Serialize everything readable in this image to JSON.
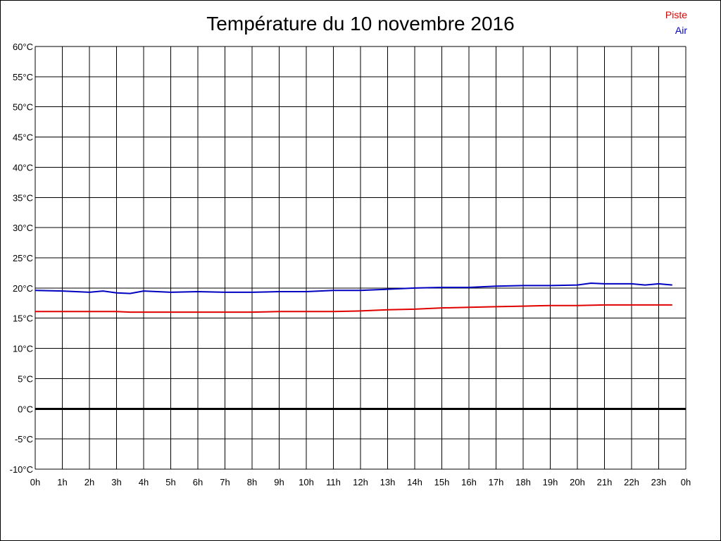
{
  "chart_data": {
    "type": "line",
    "title": "Température du 10 novembre 2016",
    "xlabel": "",
    "ylabel": "",
    "x_tick_labels": [
      "0h",
      "1h",
      "2h",
      "3h",
      "4h",
      "5h",
      "6h",
      "7h",
      "8h",
      "9h",
      "10h",
      "11h",
      "12h",
      "13h",
      "14h",
      "15h",
      "16h",
      "17h",
      "18h",
      "19h",
      "20h",
      "21h",
      "22h",
      "23h",
      "0h"
    ],
    "y_tick_labels": [
      "-10°C",
      "-5°C",
      "0°C",
      "5°C",
      "10°C",
      "15°C",
      "20°C",
      "25°C",
      "30°C",
      "35°C",
      "40°C",
      "45°C",
      "50°C",
      "55°C",
      "60°C"
    ],
    "xlim": [
      0,
      24
    ],
    "ylim": [
      -10,
      60
    ],
    "grid": true,
    "legend_position": "top-right",
    "zero_line": 0,
    "series": [
      {
        "name": "Piste",
        "color": "#e00000",
        "x": [
          0,
          1,
          2,
          3,
          3.5,
          4,
          5,
          6,
          7,
          8,
          9,
          10,
          11,
          12,
          13,
          14,
          15,
          16,
          17,
          18,
          19,
          20,
          21,
          22,
          23,
          23.5
        ],
        "values": [
          16.1,
          16.1,
          16.1,
          16.1,
          16.0,
          16.0,
          16.0,
          16.0,
          16.0,
          16.0,
          16.1,
          16.1,
          16.1,
          16.2,
          16.4,
          16.5,
          16.7,
          16.8,
          16.9,
          17.0,
          17.1,
          17.1,
          17.2,
          17.2,
          17.2,
          17.2
        ]
      },
      {
        "name": "Air",
        "color": "#0000c0",
        "x": [
          0,
          1,
          2,
          2.5,
          3,
          3.5,
          4,
          5,
          6,
          7,
          8,
          9,
          10,
          11,
          12,
          13,
          14,
          15,
          16,
          17,
          18,
          19,
          20,
          20.5,
          21,
          22,
          22.5,
          23,
          23.5
        ],
        "values": [
          19.6,
          19.5,
          19.3,
          19.5,
          19.2,
          19.1,
          19.5,
          19.3,
          19.4,
          19.3,
          19.3,
          19.4,
          19.4,
          19.6,
          19.6,
          19.8,
          20.0,
          20.1,
          20.1,
          20.3,
          20.4,
          20.4,
          20.5,
          20.8,
          20.7,
          20.7,
          20.5,
          20.7,
          20.5
        ]
      }
    ]
  }
}
